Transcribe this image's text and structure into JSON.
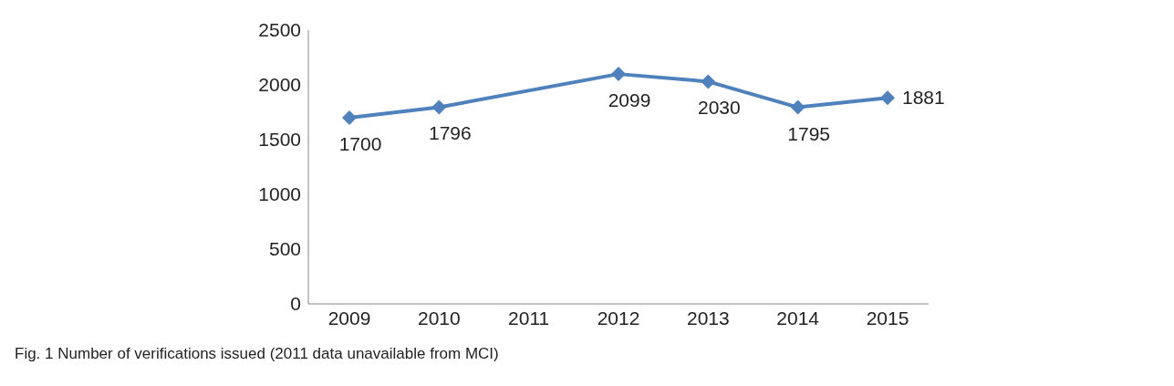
{
  "chart_data": {
    "type": "line",
    "categories": [
      "2009",
      "2010",
      "2011",
      "2012",
      "2013",
      "2014",
      "2015"
    ],
    "series": [
      {
        "color": "#4f81bd",
        "values": [
          1700,
          1796,
          null,
          2099,
          2030,
          1795,
          1881
        ]
      }
    ],
    "ylim": [
      0,
      2500
    ],
    "yticks": [
      0,
      500,
      1000,
      1500,
      2000,
      2500
    ],
    "grid": false,
    "legend": false,
    "marker": "diamond",
    "line_style": "solid",
    "data_labels": true,
    "annotations": [
      "Fig. 1 Number of verifications issued (2011 data unavailable from MCI)"
    ]
  }
}
